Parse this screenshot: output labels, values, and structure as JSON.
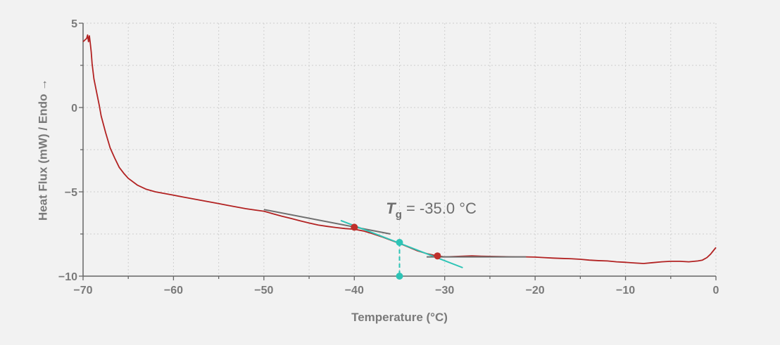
{
  "chart_data": {
    "type": "line",
    "title": "",
    "xlabel": "Temperature (°C)",
    "ylabel": "Heat Flux (mW) / Endo →",
    "xlim": [
      -70,
      0
    ],
    "ylim": [
      -10,
      5
    ],
    "xticks": [
      -70,
      -65,
      -60,
      -55,
      -50,
      -45,
      -40,
      -35,
      -30,
      -25,
      -20,
      -15,
      -10,
      -5,
      0
    ],
    "xtick_labels": [
      "−70",
      "",
      "−60",
      "",
      "−50",
      "",
      "−40",
      "",
      "−30",
      "",
      "−20",
      "",
      "−10",
      "",
      "0"
    ],
    "yticks": [
      5,
      2.5,
      0,
      -2.5,
      -5,
      -7.5,
      -10
    ],
    "ytick_labels": [
      "5",
      "",
      "0",
      "",
      "−5",
      "",
      "−10"
    ],
    "grid": true,
    "colors": {
      "curve": "#b22222",
      "tangent": "#6f6f6f",
      "inflection": "#2ec4b6",
      "marker": "#c0302b"
    },
    "series": [
      {
        "x": [
          -70,
          -69.8,
          -69.6,
          -69.5,
          -69.4,
          -69.3,
          -69.2,
          -69.1,
          -69,
          -68.8,
          -68.5,
          -68.2,
          -68,
          -67.5,
          -67,
          -66.5,
          -66,
          -65.5,
          -65,
          -64,
          -63,
          -62,
          -61,
          -60,
          -59,
          -58,
          -57,
          -56,
          -55,
          -54,
          -53,
          -52,
          -51,
          -50,
          -49,
          -48,
          -47,
          -46,
          -45,
          -44,
          -43,
          -42,
          -41,
          -40,
          -39,
          -38,
          -37,
          -36,
          -35,
          -34,
          -33,
          -32,
          -31,
          -30,
          -29,
          -28,
          -27,
          -26,
          -25,
          -24,
          -23,
          -22,
          -21,
          -20,
          -19,
          -18,
          -17,
          -16,
          -15,
          -14,
          -13,
          -12,
          -11,
          -10,
          -9,
          -8,
          -7,
          -6,
          -5,
          -4,
          -3,
          -2,
          -1.5,
          -1,
          -0.6,
          -0.3,
          0
        ],
        "y": [
          3.9,
          4.0,
          4.1,
          4.3,
          3.9,
          4.25,
          3.8,
          3.3,
          2.6,
          1.7,
          0.9,
          0.1,
          -0.5,
          -1.5,
          -2.4,
          -3.0,
          -3.55,
          -3.9,
          -4.2,
          -4.6,
          -4.85,
          -5.0,
          -5.1,
          -5.2,
          -5.3,
          -5.4,
          -5.5,
          -5.6,
          -5.7,
          -5.8,
          -5.9,
          -6.0,
          -6.08,
          -6.15,
          -6.3,
          -6.45,
          -6.58,
          -6.72,
          -6.85,
          -6.97,
          -7.05,
          -7.12,
          -7.18,
          -7.22,
          -7.32,
          -7.48,
          -7.66,
          -7.86,
          -8.06,
          -8.28,
          -8.5,
          -8.66,
          -8.78,
          -8.86,
          -8.84,
          -8.82,
          -8.8,
          -8.82,
          -8.83,
          -8.84,
          -8.85,
          -8.86,
          -8.86,
          -8.87,
          -8.9,
          -8.93,
          -8.95,
          -8.97,
          -9.0,
          -9.05,
          -9.08,
          -9.1,
          -9.15,
          -9.18,
          -9.22,
          -9.25,
          -9.2,
          -9.15,
          -9.12,
          -9.12,
          -9.15,
          -9.1,
          -9.05,
          -8.9,
          -8.7,
          -8.5,
          -8.3
        ]
      }
    ],
    "tangents": [
      {
        "x": [
          -50,
          -36
        ],
        "y": [
          -6.05,
          -7.5
        ]
      },
      {
        "x": [
          -41.5,
          -28
        ],
        "y": [
          -6.7,
          -9.5
        ]
      },
      {
        "x": [
          -32,
          -21
        ],
        "y": [
          -8.86,
          -8.86
        ]
      }
    ],
    "markers": [
      {
        "x": -40,
        "y": -7.1,
        "kind": "onset"
      },
      {
        "x": -35,
        "y": -8.0,
        "kind": "midpoint"
      },
      {
        "x": -30.8,
        "y": -8.8,
        "kind": "end"
      },
      {
        "x": -35,
        "y": -10,
        "kind": "axis"
      }
    ],
    "annotation": {
      "symbol": "T",
      "subscript": "g",
      "text": " = -35.0 °C",
      "x": -36.5,
      "y": -6.3
    }
  }
}
